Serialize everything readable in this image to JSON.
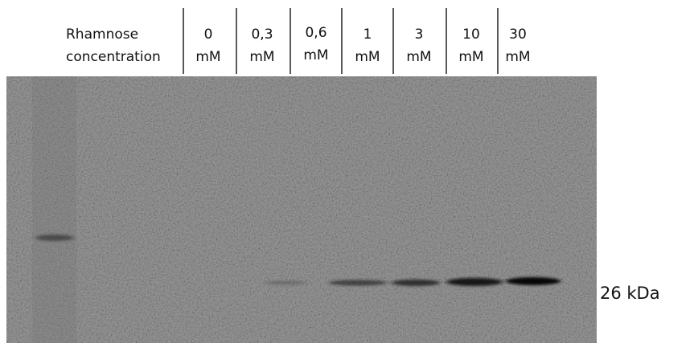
{
  "header": {
    "label": [
      "Rhamnose",
      "concentration"
    ]
  },
  "lanes": [
    {
      "value": "0",
      "unit": "mM"
    },
    {
      "value": "0,3",
      "unit": "mM"
    },
    {
      "value": "0,6",
      "unit": "mM"
    },
    {
      "value": "1",
      "unit": "mM"
    },
    {
      "value": "3",
      "unit": "mM"
    },
    {
      "value": "10",
      "unit": "mM"
    },
    {
      "value": "30",
      "unit": "mM"
    }
  ],
  "marker": "26 kDa"
}
